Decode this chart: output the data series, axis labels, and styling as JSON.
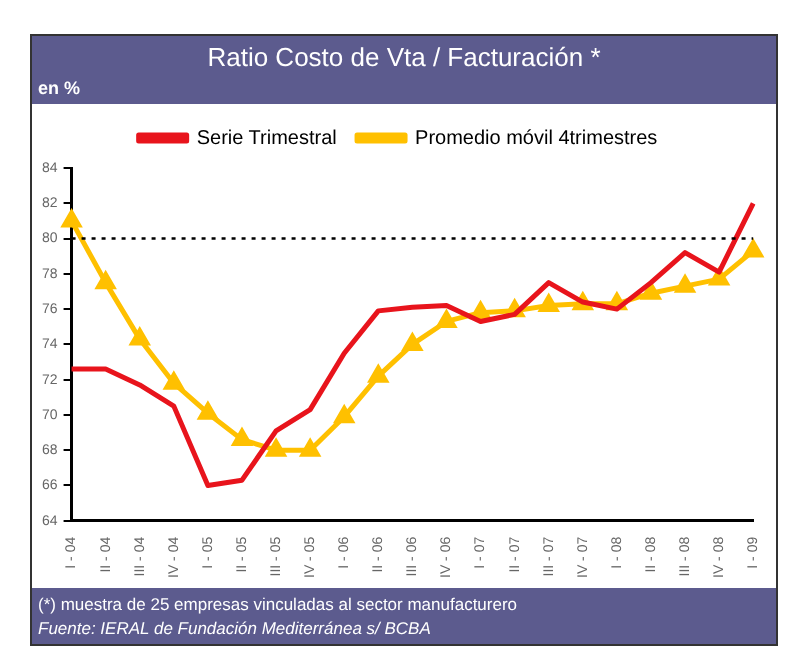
{
  "chart_data": {
    "type": "line",
    "title": "Ratio Costo de Vta / Facturación *",
    "ylabel": "en %",
    "categories": [
      "I - 04",
      "II - 04",
      "III - 04",
      "IV - 04",
      "I - 05",
      "II - 05",
      "III - 05",
      "IV - 05",
      "I - 06",
      "II - 06",
      "III - 06",
      "IV - 06",
      "I - 07",
      "II - 07",
      "III - 07",
      "IV - 07",
      "I - 08",
      "II - 08",
      "III - 08",
      "IV - 08",
      "I - 09"
    ],
    "series": [
      {
        "name": "Serie Trimestral",
        "color": "#e8141c",
        "marker": "none",
        "values": [
          72.6,
          72.6,
          71.7,
          70.5,
          66.0,
          66.3,
          69.1,
          70.3,
          73.5,
          75.9,
          76.1,
          76.2,
          75.3,
          75.7,
          77.5,
          76.4,
          76.0,
          77.5,
          79.2,
          78.1,
          82.0
        ]
      },
      {
        "name": "Promedio móvil 4trimestres",
        "color": "#ffc000",
        "marker": "triangle",
        "values": [
          81.0,
          77.5,
          74.3,
          71.8,
          70.1,
          68.6,
          68.0,
          68.0,
          69.9,
          72.2,
          74.0,
          75.3,
          75.8,
          75.9,
          76.2,
          76.3,
          76.3,
          76.9,
          77.3,
          77.7,
          79.3
        ]
      }
    ],
    "ylim": [
      64,
      84
    ],
    "yticks": [
      64,
      66,
      68,
      70,
      72,
      74,
      76,
      78,
      80,
      82,
      84
    ],
    "grid": false,
    "legend": "top",
    "ref_lines": [
      {
        "axis": "y",
        "value": 80,
        "line_style": "dotted",
        "color": "#000000"
      }
    ],
    "annotations": [
      "(*) muestra de 25 empresas vinculadas al sector manufacturero",
      "Fuente: IERAL de Fundación Mediterránea s/ BCBA"
    ]
  }
}
